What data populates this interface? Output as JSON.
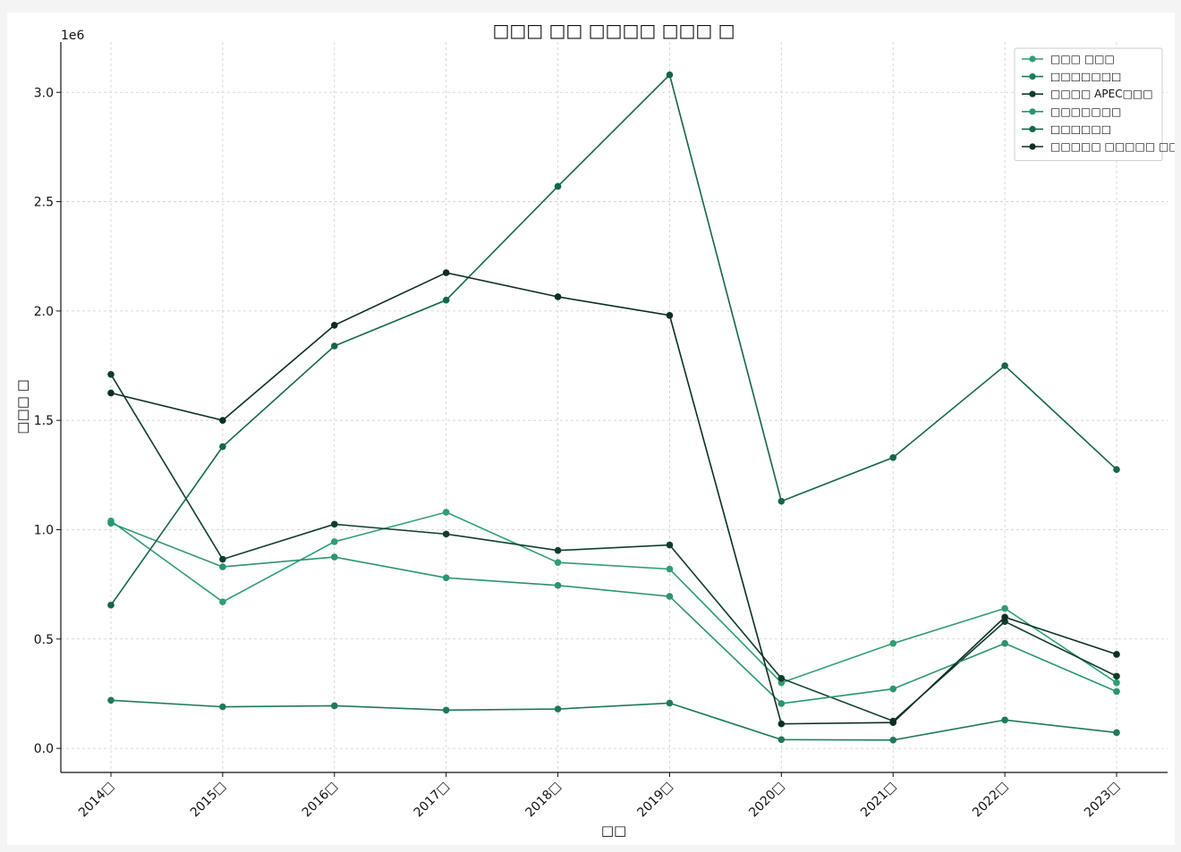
{
  "chart_data": {
    "type": "line",
    "title": "□□□ □□ □□□□ □□□ □",
    "xlabel": "□□",
    "ylabel": "□□□ □",
    "y_offset_label": "1e6",
    "categories": [
      "2014□",
      "2015□",
      "2016□",
      "2017□",
      "2018□",
      "2019□",
      "2020□",
      "2021□",
      "2022□",
      "2023□"
    ],
    "ylim": [
      -110000,
      3230000
    ],
    "yticks": [
      0.0,
      0.5,
      1.0,
      1.5,
      2.0,
      2.5,
      3.0
    ],
    "ytick_labels": [
      "0.0",
      "0.5",
      "1.0",
      "1.5",
      "2.0",
      "2.5",
      "3.0"
    ],
    "grid": true,
    "legend_position": "top-right",
    "series": [
      {
        "name": "□□□ □□□",
        "color": "#2f9e72",
        "values": [
          1040000,
          670000,
          945000,
          1080000,
          850000,
          820000,
          300000,
          480000,
          640000,
          300000
        ]
      },
      {
        "name": "□□□□□□□",
        "color": "#1f7a58",
        "values": [
          220000,
          190000,
          195000,
          175000,
          180000,
          207000,
          40000,
          38000,
          130000,
          72000
        ]
      },
      {
        "name": "□□□□ APEC□□□",
        "color": "#0f3e2c",
        "values": [
          1710000,
          865000,
          1025000,
          980000,
          905000,
          930000,
          320000,
          125000,
          580000,
          330000
        ]
      },
      {
        "name": "□□□□□□□",
        "color": "#2a9470",
        "values": [
          1030000,
          830000,
          875000,
          780000,
          745000,
          695000,
          205000,
          272000,
          480000,
          260000
        ]
      },
      {
        "name": "□□□□□□",
        "color": "#15664b",
        "values": [
          655000,
          1380000,
          1840000,
          2050000,
          2570000,
          3080000,
          1130000,
          1330000,
          1750000,
          1275000
        ]
      },
      {
        "name": "□□□□□ □□□□□ □□□□",
        "color": "#0b2f22",
        "values": [
          1625000,
          1500000,
          1935000,
          2175000,
          2065000,
          1980000,
          112000,
          118000,
          600000,
          430000
        ]
      }
    ]
  }
}
